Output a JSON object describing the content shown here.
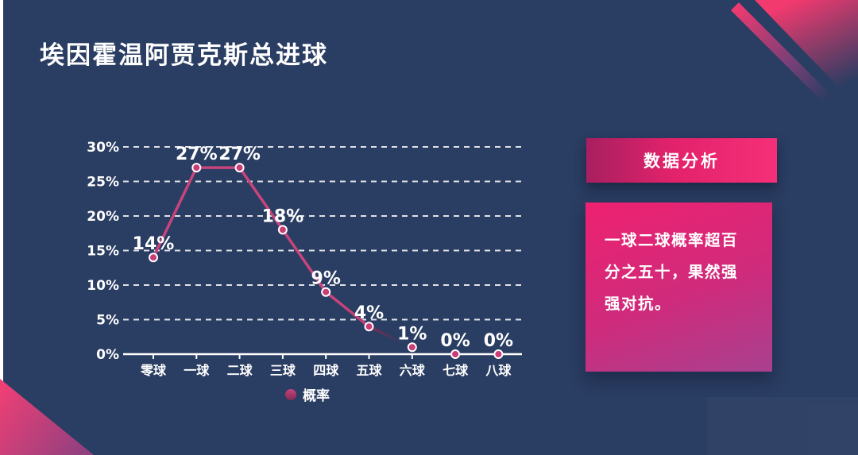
{
  "title": "埃因霍温阿贾克斯总进球",
  "colors": {
    "background": "#2a3d62",
    "text": "#ffffff",
    "grid": "rgba(255,255,255,0.85)",
    "line_top": "#c8447b",
    "line_bottom": "#832a55",
    "marker_fill": "#cb3b76",
    "marker_stroke": "#ffffff",
    "decor_pink": "#f23a6f",
    "decor_pink2": "#ee3f75",
    "decor_purple": "#93407f",
    "header_gradient": [
      "#a81f60",
      "#f52f78"
    ],
    "body_gradient": [
      "#ee2170",
      "#a8418f"
    ]
  },
  "chart_data": {
    "type": "line",
    "title": "",
    "categories": [
      "零球",
      "一球",
      "二球",
      "三球",
      "四球",
      "五球",
      "六球",
      "七球",
      "八球"
    ],
    "values": [
      14,
      27,
      27,
      18,
      9,
      4,
      1,
      0,
      0
    ],
    "point_labels": [
      "14%",
      "27%",
      "27%",
      "18%",
      "9%",
      "4%",
      "1%",
      "0%",
      "0%"
    ],
    "series_name": "概率",
    "y_ticks": [
      "0%",
      "5%",
      "10%",
      "15%",
      "20%",
      "25%",
      "30%"
    ],
    "y_tick_values": [
      0,
      5,
      10,
      15,
      20,
      25,
      30
    ],
    "ylim": [
      0,
      30
    ],
    "grid": "horizontal-dashed",
    "legend_position": "bottom",
    "note": "line fades out between 4% and 1% points"
  },
  "analysis_panel": {
    "header": "数据分析",
    "body": "一球二球概率超百分之五十，果然强强对抗。"
  }
}
